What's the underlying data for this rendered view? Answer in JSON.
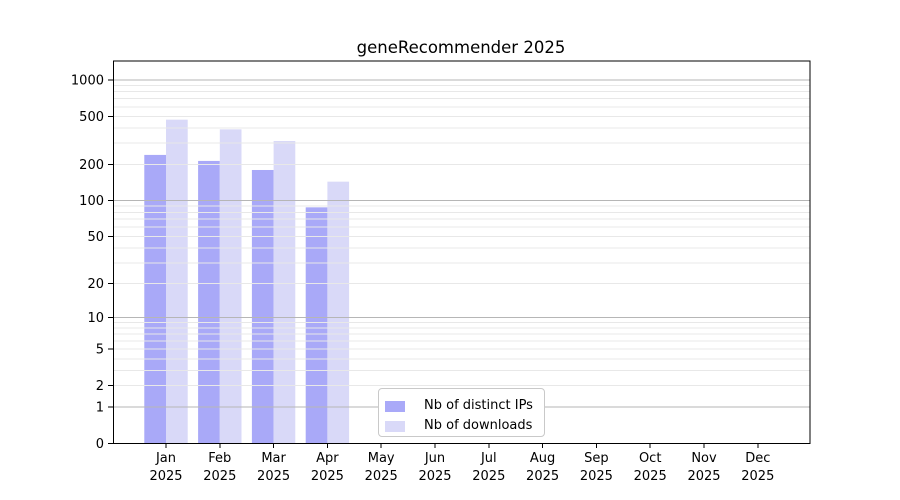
{
  "chart_data": {
    "type": "bar",
    "title": "geneRecommender 2025",
    "yscale": "log1p",
    "ylim": [
      0,
      1000
    ],
    "y_ticks": [
      0,
      1,
      2,
      5,
      10,
      20,
      50,
      100,
      200,
      500,
      1000
    ],
    "categories": [
      "Jan",
      "Feb",
      "Mar",
      "Apr",
      "May",
      "Jun",
      "Jul",
      "Aug",
      "Sep",
      "Oct",
      "Nov",
      "Dec"
    ],
    "x_tick_year": "2025",
    "grid": true,
    "legend_position": "lower center",
    "series": [
      {
        "name": "Nb of distinct IPs",
        "color": "#a9a9f8",
        "values": [
          240,
          214,
          180,
          88,
          null,
          null,
          null,
          null,
          null,
          null,
          null,
          null
        ]
      },
      {
        "name": "Nb of downloads",
        "color": "#d9d9f8",
        "values": [
          470,
          391,
          313,
          144,
          null,
          null,
          null,
          null,
          null,
          null,
          null,
          null
        ]
      }
    ],
    "colors": {
      "grid_major": "#b6b6b6",
      "grid_minor": "#e8e8e8",
      "axis": "#000000",
      "text": "#000000",
      "background": "#ffffff"
    }
  }
}
